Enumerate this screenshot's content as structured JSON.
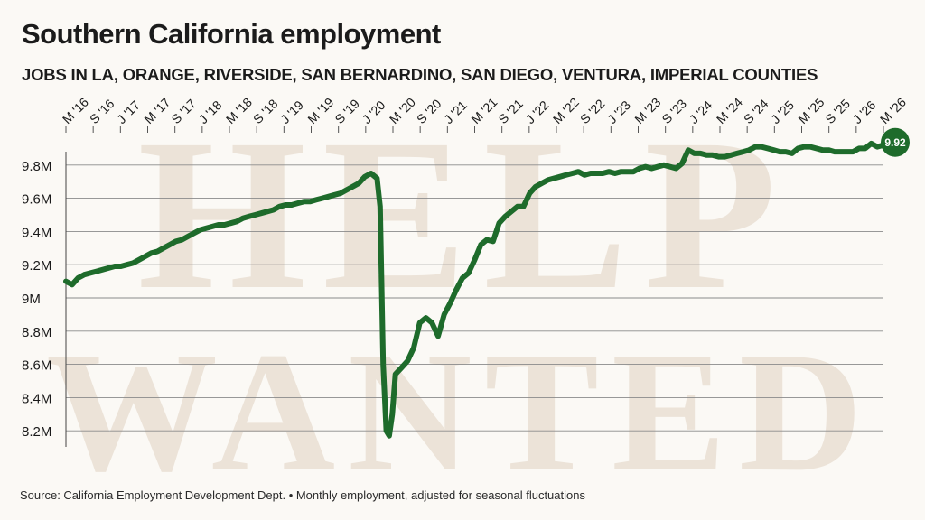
{
  "header": {
    "title": "Southern California employment",
    "subtitle": "JOBS IN LA, ORANGE, RIVERSIDE, SAN BERNARDINO, SAN DIEGO, VENTURA, IMPERIAL COUNTIES"
  },
  "footer": {
    "source": "Source: California Employment Development Dept. • Monthly employment, adjusted for seasonal fluctuations"
  },
  "watermark": {
    "line1": "HELP",
    "line2": "WANTED"
  },
  "colors": {
    "line": "#1e6b2b",
    "grid": "#8a8a8a",
    "background": "#fbf9f5",
    "watermark": "#e9dfd1"
  },
  "chart_data": {
    "type": "line",
    "title": "Southern California employment",
    "subtitle": "JOBS IN LA, ORANGE, RIVERSIDE, SAN BERNARDINO, SAN DIEGO, VENTURA, IMPERIAL COUNTIES",
    "xlabel": "",
    "ylabel": "",
    "unit": "M",
    "x_ticks": [
      "M '16",
      "S '16",
      "J '17",
      "M '17",
      "S '17",
      "J '18",
      "M '18",
      "S '18",
      "J '19",
      "M '19",
      "S '19",
      "J '20",
      "M '20",
      "S '20",
      "J '21",
      "M '21",
      "S '21",
      "J '22",
      "M '22",
      "S '22",
      "J '23",
      "M '23",
      "S '23",
      "J '24",
      "M '24",
      "S '24",
      "J '25",
      "M '25",
      "S '25",
      "J '26",
      "M '26"
    ],
    "y_ticks": [
      "8.2M",
      "8.4M",
      "8.6M",
      "8.8M",
      "9M",
      "9.2M",
      "9.4M",
      "9.6M",
      "9.8M"
    ],
    "y_tick_values": [
      8.2,
      8.4,
      8.6,
      8.8,
      9.0,
      9.2,
      9.4,
      9.6,
      9.8
    ],
    "ylim": [
      8.1,
      9.98
    ],
    "grid": true,
    "end_label": "9.92",
    "series": [
      {
        "values": [
          [
            0,
            9.1
          ],
          [
            1,
            9.08
          ],
          [
            2,
            9.12
          ],
          [
            3,
            9.14
          ],
          [
            4,
            9.15
          ],
          [
            5,
            9.16
          ],
          [
            6,
            9.17
          ],
          [
            7,
            9.18
          ],
          [
            8,
            9.19
          ],
          [
            9,
            9.19
          ],
          [
            10,
            9.2
          ],
          [
            11,
            9.21
          ],
          [
            12,
            9.23
          ],
          [
            13,
            9.25
          ],
          [
            14,
            9.27
          ],
          [
            15,
            9.28
          ],
          [
            16,
            9.3
          ],
          [
            17,
            9.32
          ],
          [
            18,
            9.34
          ],
          [
            19,
            9.35
          ],
          [
            20,
            9.37
          ],
          [
            21,
            9.39
          ],
          [
            22,
            9.41
          ],
          [
            23,
            9.42
          ],
          [
            24,
            9.43
          ],
          [
            25,
            9.44
          ],
          [
            26,
            9.44
          ],
          [
            27,
            9.45
          ],
          [
            28,
            9.46
          ],
          [
            29,
            9.48
          ],
          [
            30,
            9.49
          ],
          [
            31,
            9.5
          ],
          [
            32,
            9.51
          ],
          [
            33,
            9.52
          ],
          [
            34,
            9.53
          ],
          [
            35,
            9.55
          ],
          [
            36,
            9.56
          ],
          [
            37,
            9.56
          ],
          [
            38,
            9.57
          ],
          [
            39,
            9.58
          ],
          [
            40,
            9.58
          ],
          [
            41,
            9.59
          ],
          [
            42,
            9.6
          ],
          [
            43,
            9.61
          ],
          [
            44,
            9.62
          ],
          [
            45,
            9.63
          ],
          [
            46,
            9.65
          ],
          [
            47,
            9.67
          ],
          [
            48,
            9.69
          ],
          [
            49,
            9.73
          ],
          [
            50,
            9.75
          ],
          [
            51,
            9.72
          ],
          [
            51.5,
            9.55
          ],
          [
            52,
            8.6
          ],
          [
            52.5,
            8.2
          ],
          [
            53,
            8.17
          ],
          [
            53.5,
            8.3
          ],
          [
            54,
            8.54
          ],
          [
            55,
            8.58
          ],
          [
            56,
            8.62
          ],
          [
            57,
            8.7
          ],
          [
            58,
            8.85
          ],
          [
            59,
            8.88
          ],
          [
            60,
            8.85
          ],
          [
            61,
            8.77
          ],
          [
            62,
            8.9
          ],
          [
            63,
            8.97
          ],
          [
            64,
            9.05
          ],
          [
            65,
            9.12
          ],
          [
            66,
            9.15
          ],
          [
            67,
            9.23
          ],
          [
            68,
            9.32
          ],
          [
            69,
            9.35
          ],
          [
            70,
            9.34
          ],
          [
            71,
            9.45
          ],
          [
            72,
            9.49
          ],
          [
            73,
            9.52
          ],
          [
            74,
            9.55
          ],
          [
            75,
            9.55
          ],
          [
            76,
            9.63
          ],
          [
            77,
            9.67
          ],
          [
            78,
            9.69
          ],
          [
            79,
            9.71
          ],
          [
            80,
            9.72
          ],
          [
            81,
            9.73
          ],
          [
            82,
            9.74
          ],
          [
            83,
            9.75
          ],
          [
            84,
            9.76
          ],
          [
            85,
            9.74
          ],
          [
            86,
            9.75
          ],
          [
            87,
            9.75
          ],
          [
            88,
            9.75
          ],
          [
            89,
            9.76
          ],
          [
            90,
            9.75
          ],
          [
            91,
            9.76
          ],
          [
            92,
            9.76
          ],
          [
            93,
            9.76
          ],
          [
            94,
            9.78
          ],
          [
            95,
            9.79
          ],
          [
            96,
            9.78
          ],
          [
            97,
            9.79
          ],
          [
            98,
            9.8
          ],
          [
            99,
            9.79
          ],
          [
            100,
            9.78
          ],
          [
            101,
            9.81
          ],
          [
            102,
            9.89
          ],
          [
            103,
            9.87
          ],
          [
            104,
            9.87
          ],
          [
            105,
            9.86
          ],
          [
            106,
            9.86
          ],
          [
            107,
            9.85
          ],
          [
            108,
            9.85
          ],
          [
            109,
            9.86
          ],
          [
            110,
            9.87
          ],
          [
            111,
            9.88
          ],
          [
            112,
            9.89
          ],
          [
            113,
            9.91
          ],
          [
            114,
            9.91
          ],
          [
            115,
            9.9
          ],
          [
            116,
            9.89
          ],
          [
            117,
            9.88
          ],
          [
            118,
            9.88
          ],
          [
            119,
            9.87
          ],
          [
            120,
            9.9
          ],
          [
            121,
            9.91
          ],
          [
            122,
            9.91
          ],
          [
            123,
            9.9
          ],
          [
            124,
            9.89
          ],
          [
            125,
            9.89
          ],
          [
            126,
            9.88
          ],
          [
            127,
            9.88
          ],
          [
            128,
            9.88
          ],
          [
            129,
            9.88
          ],
          [
            130,
            9.9
          ],
          [
            131,
            9.9
          ],
          [
            132,
            9.93
          ],
          [
            133,
            9.91
          ],
          [
            134,
            9.92
          ]
        ]
      }
    ]
  }
}
